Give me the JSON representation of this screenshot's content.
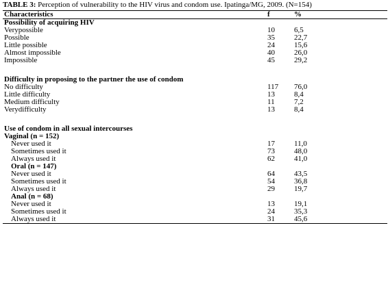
{
  "caption": {
    "label": "TABLE 3:",
    "text": " Perception of vulnerability to the HIV virus and condom use. Ipatinga/MG, 2009. (N=154)"
  },
  "header": {
    "col1": "Characteristics",
    "col2": "f",
    "col3": "%"
  },
  "rows": [
    {
      "kind": "heading",
      "label": "Possibility of acquiring HIV",
      "f": "",
      "p": ""
    },
    {
      "kind": "data",
      "label": "Verypossible",
      "f": "10",
      "p": "6,5"
    },
    {
      "kind": "data",
      "label": "Possible",
      "f": "35",
      "p": "22,7"
    },
    {
      "kind": "data",
      "label": "Little possible",
      "f": "24",
      "p": "15,6"
    },
    {
      "kind": "data",
      "label": "Almost impossible",
      "f": "40",
      "p": "26,0"
    },
    {
      "kind": "data",
      "label": "Impossible",
      "f": "45",
      "p": "29,2"
    },
    {
      "kind": "gap",
      "label": "",
      "f": "",
      "p": ""
    },
    {
      "kind": "heading",
      "label": "Difficulty in proposing to the partner the use of condom",
      "f": "",
      "p": ""
    },
    {
      "kind": "data",
      "label": "No difficulty",
      "f": "117",
      "p": "76,0"
    },
    {
      "kind": "data",
      "label": "Little difficulty",
      "f": "13",
      "p": "8,4"
    },
    {
      "kind": "data",
      "label": "Medium difficulty",
      "f": "11",
      "p": "7,2"
    },
    {
      "kind": "data",
      "label": "Verydifficulty",
      "f": "13",
      "p": "8,4"
    },
    {
      "kind": "gap",
      "label": "",
      "f": "",
      "p": ""
    },
    {
      "kind": "heading",
      "label": "Use of condom in all sexual intercourses",
      "f": "",
      "p": ""
    },
    {
      "kind": "heading",
      "label": "Vaginal (n = 152)",
      "f": "",
      "p": ""
    },
    {
      "kind": "ind",
      "label": "Never used it",
      "f": "17",
      "p": "11,0"
    },
    {
      "kind": "ind",
      "label": "Sometimes used it",
      "f": "73",
      "p": "48,0"
    },
    {
      "kind": "ind",
      "label": "Always used it",
      "f": "62",
      "p": "41,0"
    },
    {
      "kind": "sub",
      "label": "Oral (n = 147)",
      "f": "",
      "p": ""
    },
    {
      "kind": "ind",
      "label": "Never used it",
      "f": "64",
      "p": "43,5"
    },
    {
      "kind": "ind",
      "label": "Sometimes used it",
      "f": "54",
      "p": "36,8"
    },
    {
      "kind": "ind",
      "label": "Always used it",
      "f": "29",
      "p": "19,7"
    },
    {
      "kind": "sub",
      "label": "Anal (n = 68)",
      "f": "",
      "p": ""
    },
    {
      "kind": "ind",
      "label": "Never used it",
      "f": "13",
      "p": "19,1"
    },
    {
      "kind": "ind",
      "label": "Sometimes used it",
      "f": "24",
      "p": "35,3"
    },
    {
      "kind": "ind",
      "label": "Always used it",
      "f": "31",
      "p": "45,6"
    }
  ]
}
